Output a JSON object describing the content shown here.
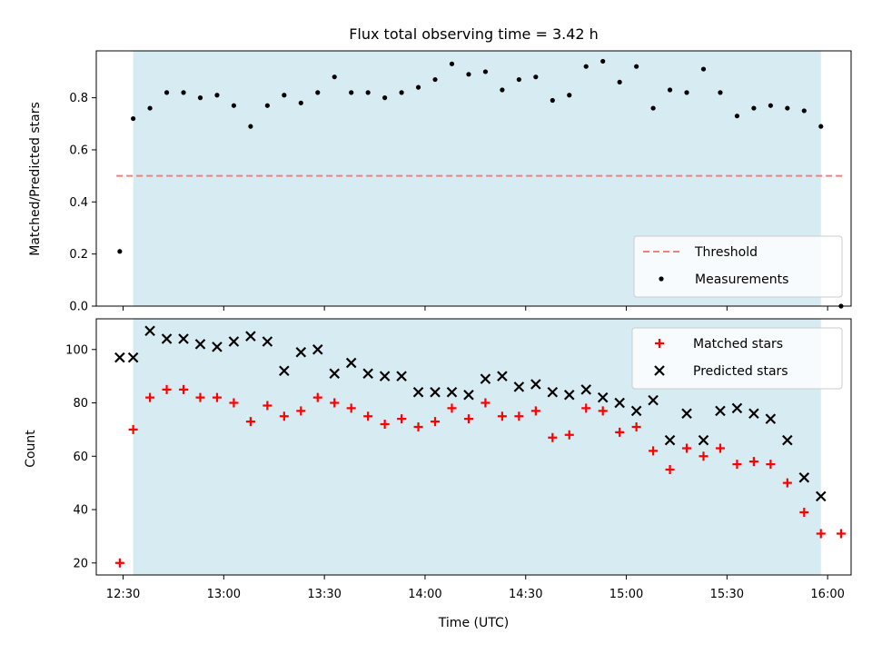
{
  "chart_data": [
    {
      "type": "scatter",
      "title": "Flux total observing time = 3.42 h",
      "ylabel": "Matched/Predicted stars",
      "ylim": [
        0,
        0.98
      ],
      "yticks": [
        "0.0",
        "0.2",
        "0.4",
        "0.6",
        "0.8"
      ],
      "shaded_span": [
        "12:33",
        "15:58"
      ],
      "colors": {
        "shade": "#add8e6",
        "threshold": "#f08080",
        "measurements": "#000000"
      },
      "legend": {
        "placement": "lower right",
        "entries": [
          "Threshold",
          "Measurements"
        ]
      },
      "threshold": {
        "name": "Threshold",
        "value": 0.5,
        "x_range": [
          "12:28",
          "16:05"
        ]
      },
      "series": [
        {
          "name": "Measurements",
          "x": [
            "12:29",
            "12:33",
            "12:38",
            "12:43",
            "12:48",
            "12:53",
            "12:58",
            "13:03",
            "13:08",
            "13:13",
            "13:18",
            "13:23",
            "13:28",
            "13:33",
            "13:38",
            "13:43",
            "13:48",
            "13:53",
            "13:58",
            "14:03",
            "14:08",
            "14:13",
            "14:18",
            "14:23",
            "14:28",
            "14:33",
            "14:38",
            "14:43",
            "14:48",
            "14:53",
            "14:58",
            "15:03",
            "15:08",
            "15:13",
            "15:18",
            "15:23",
            "15:28",
            "15:33",
            "15:38",
            "15:43",
            "15:48",
            "15:53",
            "15:58",
            "16:04"
          ],
          "y": [
            0.21,
            0.72,
            0.76,
            0.82,
            0.82,
            0.8,
            0.81,
            0.77,
            0.69,
            0.77,
            0.81,
            0.78,
            0.82,
            0.88,
            0.82,
            0.82,
            0.8,
            0.82,
            0.84,
            0.87,
            0.93,
            0.89,
            0.9,
            0.83,
            0.87,
            0.88,
            0.79,
            0.81,
            0.92,
            0.94,
            0.86,
            0.92,
            0.76,
            0.83,
            0.82,
            0.91,
            0.82,
            0.73,
            0.76,
            0.77,
            0.76,
            0.75,
            0.69,
            0.0
          ]
        }
      ]
    },
    {
      "type": "scatter",
      "xlabel": "Time (UTC)",
      "ylabel": "Count",
      "ylim": [
        15.5,
        111.5
      ],
      "yticks": [
        "20",
        "40",
        "60",
        "80",
        "100"
      ],
      "xticks": [
        "12:30",
        "13:00",
        "13:30",
        "14:00",
        "14:30",
        "15:00",
        "15:30",
        "16:00"
      ],
      "shaded_span": [
        "12:33",
        "15:58"
      ],
      "colors": {
        "shade": "#add8e6",
        "matched": "#ff0000",
        "predicted": "#000000"
      },
      "legend": {
        "placement": "upper right",
        "entries": [
          "Matched stars",
          "Predicted stars"
        ]
      },
      "series": [
        {
          "name": "Matched stars",
          "marker": "plus",
          "x": [
            "12:29",
            "12:33",
            "12:38",
            "12:43",
            "12:48",
            "12:53",
            "12:58",
            "13:03",
            "13:08",
            "13:13",
            "13:18",
            "13:23",
            "13:28",
            "13:33",
            "13:38",
            "13:43",
            "13:48",
            "13:53",
            "13:58",
            "14:03",
            "14:08",
            "14:13",
            "14:18",
            "14:23",
            "14:28",
            "14:33",
            "14:38",
            "14:43",
            "14:48",
            "14:53",
            "14:58",
            "15:03",
            "15:08",
            "15:13",
            "15:18",
            "15:23",
            "15:28",
            "15:33",
            "15:38",
            "15:43",
            "15:48",
            "15:53",
            "15:58",
            "16:04"
          ],
          "y": [
            20,
            70,
            82,
            85,
            85,
            82,
            82,
            80,
            73,
            79,
            75,
            77,
            82,
            80,
            78,
            75,
            72,
            74,
            71,
            73,
            78,
            74,
            80,
            75,
            75,
            77,
            67,
            68,
            78,
            77,
            69,
            71,
            62,
            55,
            63,
            60,
            63,
            57,
            58,
            57,
            50,
            39,
            31,
            31
          ]
        },
        {
          "name": "Predicted stars",
          "marker": "x",
          "x": [
            "12:29",
            "12:33",
            "12:38",
            "12:43",
            "12:48",
            "12:53",
            "12:58",
            "13:03",
            "13:08",
            "13:13",
            "13:18",
            "13:23",
            "13:28",
            "13:33",
            "13:38",
            "13:43",
            "13:48",
            "13:53",
            "13:58",
            "14:03",
            "14:08",
            "14:13",
            "14:18",
            "14:23",
            "14:28",
            "14:33",
            "14:38",
            "14:43",
            "14:48",
            "14:53",
            "14:58",
            "15:03",
            "15:08",
            "15:13",
            "15:18",
            "15:23",
            "15:28",
            "15:33",
            "15:38",
            "15:43",
            "15:48",
            "15:53",
            "15:58"
          ],
          "y": [
            97,
            97,
            107,
            104,
            104,
            102,
            101,
            103,
            105,
            103,
            92,
            99,
            100,
            91,
            95,
            91,
            90,
            90,
            84,
            84,
            84,
            83,
            89,
            90,
            86,
            87,
            84,
            83,
            85,
            82,
            80,
            77,
            81,
            66,
            76,
            66,
            77,
            78,
            76,
            74,
            66,
            52,
            45
          ]
        }
      ]
    }
  ]
}
